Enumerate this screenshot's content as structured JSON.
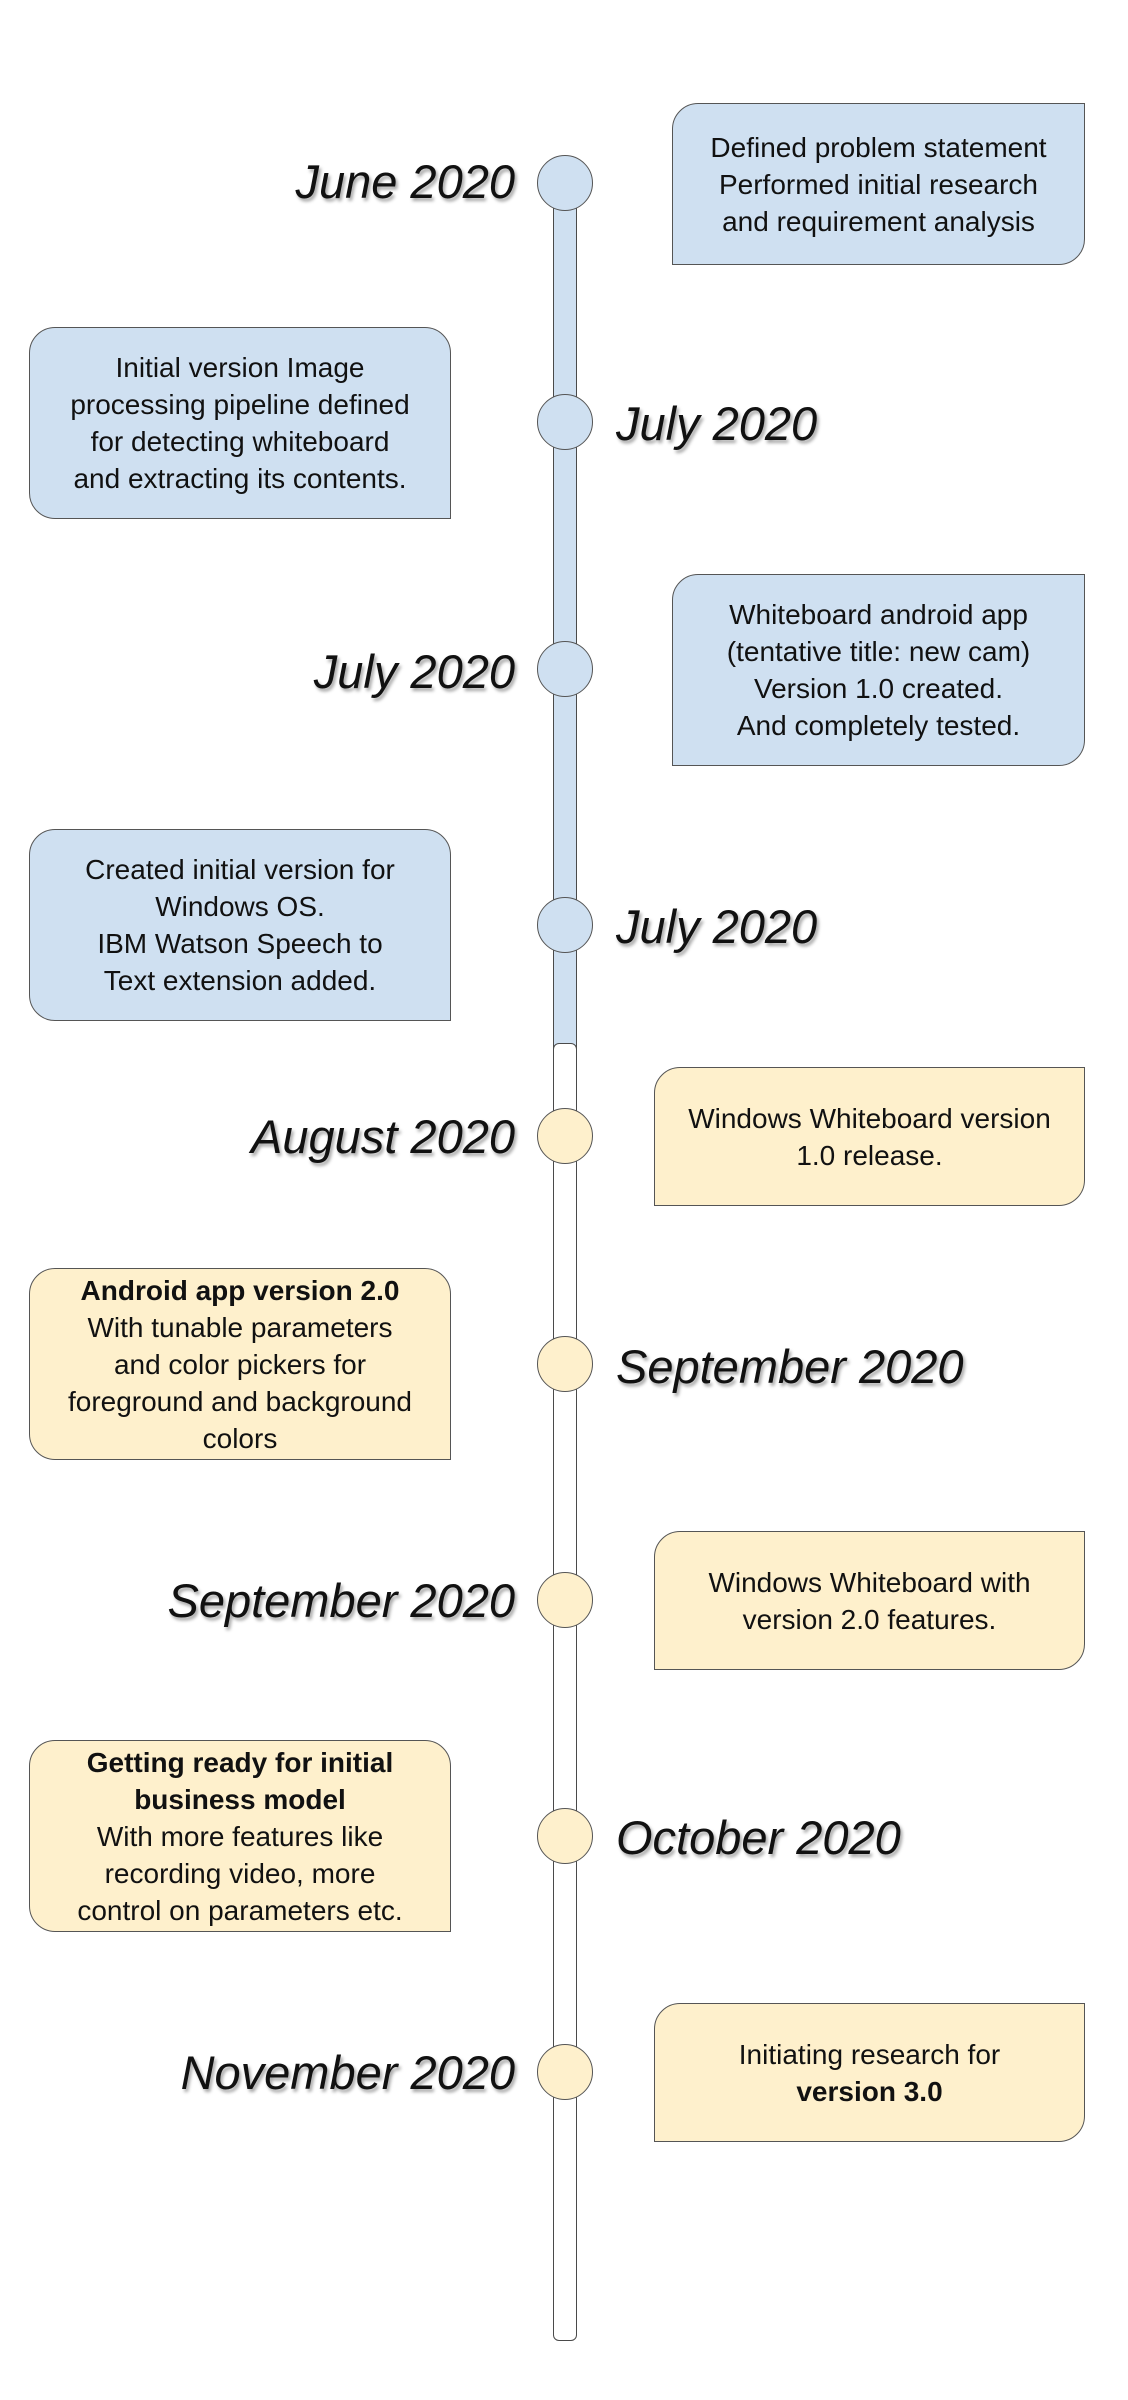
{
  "milestones": [
    {
      "date": "June 2020",
      "color": "#cfe0f1",
      "lines": [
        {
          "text": "Defined problem statement",
          "bold": false
        },
        {
          "text": "Performed initial research",
          "bold": false
        },
        {
          "text": "and  requirement analysis",
          "bold": false
        }
      ]
    },
    {
      "date": "July 2020",
      "color": "#cfe0f1",
      "lines": [
        {
          "text": "Initial version Image",
          "bold": false
        },
        {
          "text": "processing pipeline defined",
          "bold": false
        },
        {
          "text": "for detecting whiteboard",
          "bold": false
        },
        {
          "text": "and extracting its contents.",
          "bold": false
        }
      ]
    },
    {
      "date": "July 2020",
      "color": "#cfe0f1",
      "lines": [
        {
          "text": "Whiteboard android app",
          "bold": false
        },
        {
          "text": "(tentative title: new cam)",
          "bold": false
        },
        {
          "text": "Version 1.0 created.",
          "bold": false
        },
        {
          "text": "And completely tested.",
          "bold": false
        }
      ]
    },
    {
      "date": "July 2020",
      "color": "#cfe0f1",
      "lines": [
        {
          "text": "Created initial version for",
          "bold": false
        },
        {
          "text": "Windows OS.",
          "bold": false
        },
        {
          "text": "IBM Watson Speech to",
          "bold": false
        },
        {
          "text": "Text extension added.",
          "bold": false
        }
      ]
    },
    {
      "date": "August 2020",
      "color": "#fef0cc",
      "lines": [
        {
          "text": "Windows Whiteboard version",
          "bold": false
        },
        {
          "text": "1.0 release.",
          "bold": false
        }
      ]
    },
    {
      "date": "September 2020",
      "color": "#fef0cc",
      "lines": [
        {
          "text": "Android app version 2.0",
          "bold": true
        },
        {
          "text": "With tunable parameters",
          "bold": false
        },
        {
          "text": "and color pickers for",
          "bold": false
        },
        {
          "text": "foreground and background",
          "bold": false
        },
        {
          "text": "colors",
          "bold": false
        }
      ]
    },
    {
      "date": "September 2020",
      "color": "#fef0cc",
      "lines": [
        {
          "text": "Windows Whiteboard with",
          "bold": false
        },
        {
          "text": "version 2.0 features.",
          "bold": false
        }
      ]
    },
    {
      "date": "October 2020",
      "color": "#fef0cc",
      "lines": [
        {
          "text": "Getting ready for initial",
          "bold": true
        },
        {
          "text": "business model",
          "bold": true
        },
        {
          "text": "With more features like",
          "bold": false
        },
        {
          "text": "recording video, more",
          "bold": false
        },
        {
          "text": "control on parameters etc.",
          "bold": false
        }
      ]
    },
    {
      "date": "November 2020",
      "color": "#fef0cc",
      "lines": [
        {
          "text": "Initiating research for",
          "bold": false
        },
        {
          "text": "version 3.0",
          "bold": true
        }
      ]
    }
  ]
}
